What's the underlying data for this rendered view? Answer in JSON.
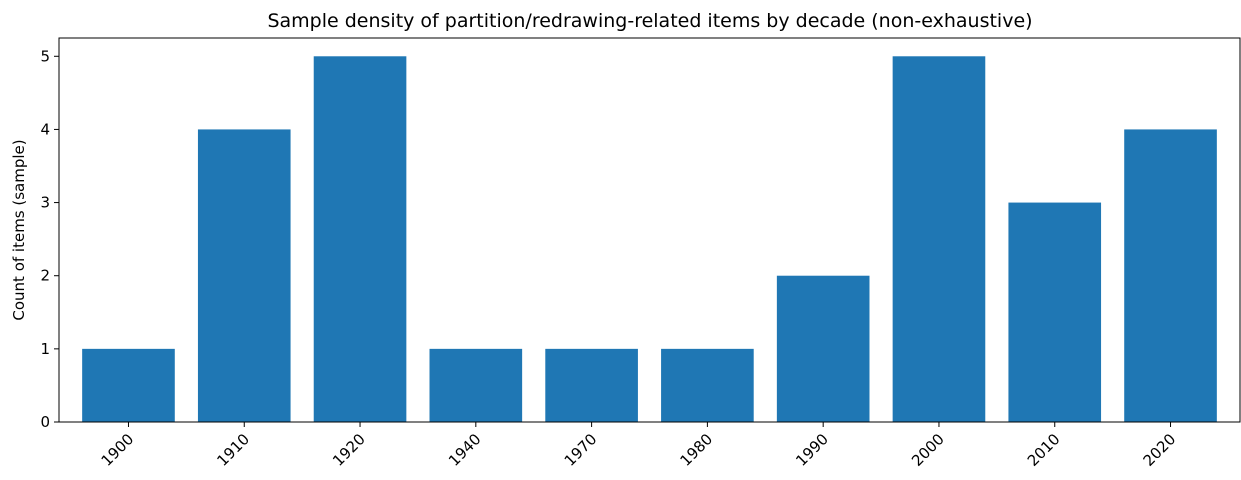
{
  "chart_data": {
    "type": "bar",
    "title": "Sample density of partition/redrawing-related items by decade (non-exhaustive)",
    "xlabel": "",
    "ylabel": "Count of items (sample)",
    "categories": [
      "1900",
      "1910",
      "1920",
      "1940",
      "1970",
      "1980",
      "1990",
      "2000",
      "2010",
      "2020"
    ],
    "values": [
      1,
      4,
      5,
      1,
      1,
      1,
      2,
      5,
      3,
      4
    ],
    "ylim": [
      0,
      5.25
    ],
    "yticks": [
      "0",
      "1",
      "2",
      "3",
      "4",
      "5"
    ],
    "grid": false,
    "bar_color": "#1f77b4"
  }
}
